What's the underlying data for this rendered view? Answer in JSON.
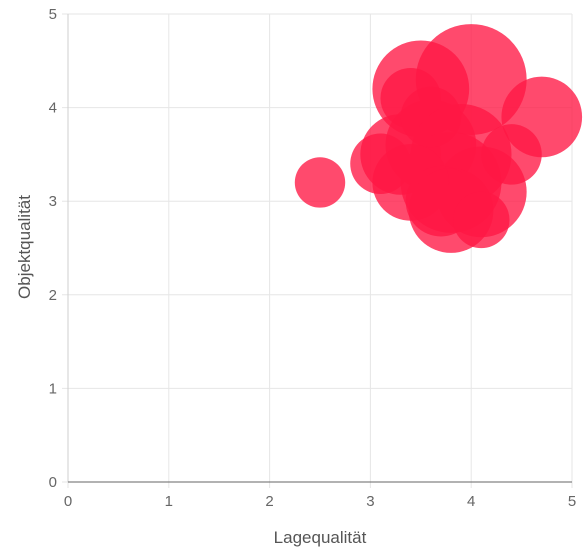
{
  "chart_data": {
    "type": "bubble",
    "title": "",
    "xlabel": "Lagequalität",
    "ylabel": "Objektqualität",
    "xlim": [
      0,
      5
    ],
    "ylim": [
      0,
      5
    ],
    "x_ticks": [
      "0",
      "1",
      "2",
      "3",
      "4",
      "5"
    ],
    "y_ticks": [
      "0",
      "1",
      "2",
      "3",
      "4",
      "5"
    ],
    "grid": true,
    "legend": "none",
    "colors": {
      "bubble": "#ff1744",
      "grid": "#e6e6e6",
      "axis": "#666666"
    },
    "series": [
      {
        "points": [
          {
            "x": 2.5,
            "y": 3.2,
            "size": 0.25
          },
          {
            "x": 3.5,
            "y": 4.2,
            "size": 0.48
          },
          {
            "x": 4.0,
            "y": 4.3,
            "size": 0.55
          },
          {
            "x": 4.7,
            "y": 3.9,
            "size": 0.4
          },
          {
            "x": 3.4,
            "y": 4.1,
            "size": 0.3
          },
          {
            "x": 3.3,
            "y": 3.5,
            "size": 0.4
          },
          {
            "x": 3.1,
            "y": 3.4,
            "size": 0.3
          },
          {
            "x": 3.6,
            "y": 3.6,
            "size": 0.45
          },
          {
            "x": 3.9,
            "y": 3.5,
            "size": 0.5
          },
          {
            "x": 3.8,
            "y": 3.2,
            "size": 0.5
          },
          {
            "x": 4.1,
            "y": 3.1,
            "size": 0.45
          },
          {
            "x": 3.4,
            "y": 3.2,
            "size": 0.38
          },
          {
            "x": 3.7,
            "y": 3.0,
            "size": 0.35
          },
          {
            "x": 3.8,
            "y": 2.9,
            "size": 0.42
          },
          {
            "x": 4.1,
            "y": 2.8,
            "size": 0.28
          },
          {
            "x": 4.4,
            "y": 3.5,
            "size": 0.3
          },
          {
            "x": 3.6,
            "y": 3.9,
            "size": 0.3
          }
        ]
      }
    ]
  }
}
